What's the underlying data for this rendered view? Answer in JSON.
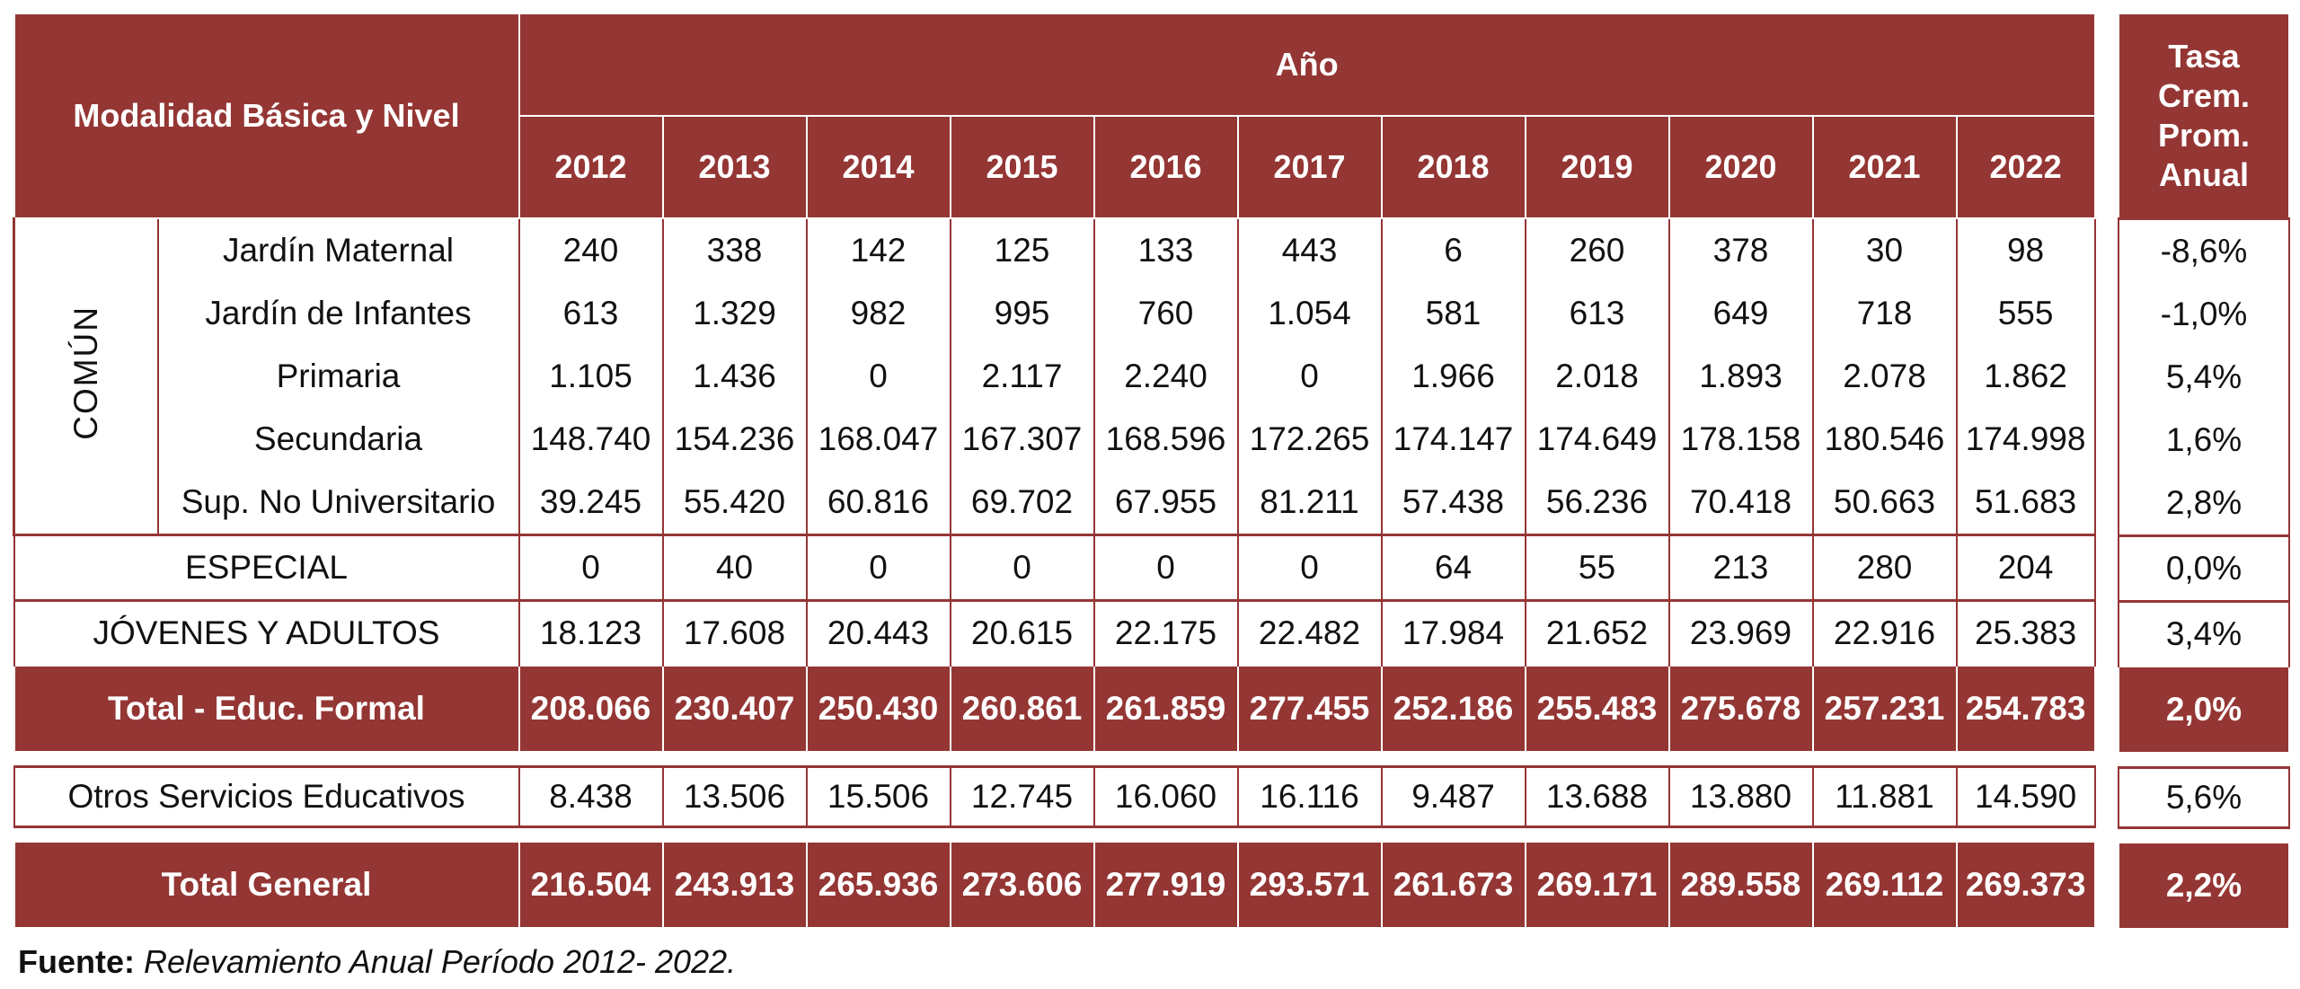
{
  "header": {
    "modalidad": "Modalidad Básica y Nivel",
    "anio": "Año",
    "years": [
      "2012",
      "2013",
      "2014",
      "2015",
      "2016",
      "2017",
      "2018",
      "2019",
      "2020",
      "2021",
      "2022"
    ],
    "tasa": [
      "Tasa",
      "Crem.",
      "Prom.",
      "Anual"
    ]
  },
  "comun_label": "COMÚN",
  "comun_rows": [
    {
      "label": "Jardín Maternal",
      "values": [
        "240",
        "338",
        "142",
        "125",
        "133",
        "443",
        "6",
        "260",
        "378",
        "30",
        "98"
      ],
      "tasa": "-8,6%"
    },
    {
      "label": "Jardín de Infantes",
      "values": [
        "613",
        "1.329",
        "982",
        "995",
        "760",
        "1.054",
        "581",
        "613",
        "649",
        "718",
        "555"
      ],
      "tasa": "-1,0%"
    },
    {
      "label": "Primaria",
      "values": [
        "1.105",
        "1.436",
        "0",
        "2.117",
        "2.240",
        "0",
        "1.966",
        "2.018",
        "1.893",
        "2.078",
        "1.862"
      ],
      "tasa": "5,4%"
    },
    {
      "label": "Secundaria",
      "values": [
        "148.740",
        "154.236",
        "168.047",
        "167.307",
        "168.596",
        "172.265",
        "174.147",
        "174.649",
        "178.158",
        "180.546",
        "174.998"
      ],
      "tasa": "1,6%"
    },
    {
      "label": "Sup. No Universitario",
      "values": [
        "39.245",
        "55.420",
        "60.816",
        "69.702",
        "67.955",
        "81.211",
        "57.438",
        "56.236",
        "70.418",
        "50.663",
        "51.683"
      ],
      "tasa": "2,8%"
    }
  ],
  "especial": {
    "label": "ESPECIAL",
    "values": [
      "0",
      "40",
      "0",
      "0",
      "0",
      "0",
      "64",
      "55",
      "213",
      "280",
      "204"
    ],
    "tasa": "0,0%"
  },
  "jovenes": {
    "label": "JÓVENES Y ADULTOS",
    "values": [
      "18.123",
      "17.608",
      "20.443",
      "20.615",
      "22.175",
      "22.482",
      "17.984",
      "21.652",
      "23.969",
      "22.916",
      "25.383"
    ],
    "tasa": "3,4%"
  },
  "total_formal": {
    "label": "Total - Educ. Formal",
    "values": [
      "208.066",
      "230.407",
      "250.430",
      "260.861",
      "261.859",
      "277.455",
      "252.186",
      "255.483",
      "275.678",
      "257.231",
      "254.783"
    ],
    "tasa": "2,0%"
  },
  "otros": {
    "label": "Otros Servicios Educativos",
    "values": [
      "8.438",
      "13.506",
      "15.506",
      "12.745",
      "16.060",
      "16.116",
      "9.487",
      "13.688",
      "13.880",
      "11.881",
      "14.590"
    ],
    "tasa": "5,6%"
  },
  "total_general": {
    "label": "Total General",
    "values": [
      "216.504",
      "243.913",
      "265.936",
      "273.606",
      "277.919",
      "293.571",
      "261.673",
      "269.171",
      "289.558",
      "269.112",
      "269.373"
    ],
    "tasa": "2,2%"
  },
  "source": {
    "label": "Fuente:",
    "text": "Relevamiento Anual Período 2012- 2022."
  },
  "colors": {
    "accent": "#943634"
  }
}
